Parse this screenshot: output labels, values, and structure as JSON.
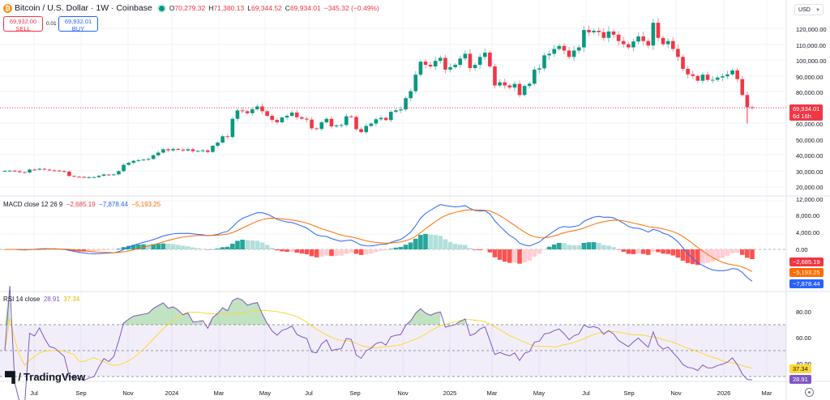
{
  "header": {
    "title": "Bitcoin / U.S. Dollar · 1W · Coinbase",
    "open_label": "O",
    "open": "70,279.32",
    "high_label": "H",
    "high": "71,380.13",
    "low_label": "L",
    "low": "69,344.52",
    "close_label": "C",
    "close": "69,934.01",
    "change": "−345.32 (−0.49%)",
    "icon": "bitcoin-icon"
  },
  "trade": {
    "sell_price": "69,932.00",
    "sell_label": "SELL",
    "spread": "0.01",
    "buy_price": "69,932.01",
    "buy_label": "BUY"
  },
  "currency": {
    "selected": "USD"
  },
  "price_axis": {
    "labels": [
      "120,000.00",
      "110,000.00",
      "100,000.00",
      "90,000.00",
      "80,000.00",
      "60,000.00",
      "50,000.00",
      "40,000.00",
      "30,000.00",
      "20,000.00"
    ],
    "current_price": "69,934.01",
    "countdown": "6d 16h"
  },
  "macd": {
    "legend_name": "MACD close 12 26 9",
    "hist": "−2,685.19",
    "macd": "−7,878.44",
    "signal": "−5,193.25",
    "axis_labels": [
      "12,000.00",
      "8,000.00",
      "4,000.00",
      "0.00"
    ]
  },
  "rsi": {
    "legend_name": "RSI 14 close",
    "rsi": "28.91",
    "ma": "37.34",
    "axis_labels": [
      "80.00",
      "60.00",
      "40.00"
    ]
  },
  "time_axis": {
    "labels": [
      "Jul",
      "Sep",
      "Nov",
      "2024",
      "Mar",
      "May",
      "Jul",
      "Sep",
      "Nov",
      "2025",
      "Mar",
      "May",
      "Jul",
      "Sep",
      "Nov",
      "2026",
      "Mar"
    ]
  },
  "branding": {
    "logo_text": "TradingView"
  },
  "colors": {
    "up": "#089981",
    "down": "#f23645",
    "macd": "#2962ff",
    "signal": "#ff6d00",
    "rsi": "#7e57c2",
    "rsi_ma": "#fdd835"
  },
  "chart_data": [
    {
      "type": "candlestick",
      "title": "Bitcoin / U.S. Dollar · 1W · Coinbase",
      "ylabel": "USD",
      "ylim": [
        15000,
        125000
      ],
      "x_tick_labels": [
        "Jul",
        "Sep",
        "Nov",
        "2024",
        "Mar",
        "May",
        "Jul",
        "Sep",
        "Nov",
        "2025",
        "Mar",
        "May",
        "Jul",
        "Sep",
        "Nov",
        "2026",
        "Mar"
      ],
      "close_approx": [
        30200,
        30300,
        30000,
        29400,
        29200,
        31000,
        30900,
        31500,
        31000,
        30500,
        30400,
        30100,
        29700,
        27000,
        26500,
        26400,
        26000,
        26200,
        26300,
        27100,
        27900,
        27500,
        28000,
        30000,
        34000,
        35300,
        36500,
        36900,
        37300,
        37700,
        40000,
        41700,
        43800,
        43100,
        44000,
        43600,
        43000,
        43800,
        42600,
        42800,
        43100,
        42100,
        46000,
        48000,
        52000,
        51500,
        63000,
        68300,
        67800,
        66500,
        69000,
        70800,
        67800,
        64900,
        62300,
        60800,
        63800,
        64900,
        66900,
        64000,
        63100,
        62500,
        57000,
        56600,
        60800,
        63000,
        58200,
        58800,
        59100,
        64600,
        64200,
        56500,
        54600,
        58500,
        60000,
        62700,
        63600,
        62200,
        67400,
        68300,
        68900,
        76000,
        80400,
        90800,
        99000,
        97000,
        96000,
        99500,
        101400,
        94000,
        95500,
        97000,
        101000,
        104000,
        95000,
        97000,
        102000,
        104700,
        96000,
        84000,
        86000,
        84000,
        82700,
        85000,
        78000,
        83700,
        85100,
        94000,
        94800,
        103000,
        104000,
        107000,
        108900,
        106000,
        102000,
        106000,
        108000,
        119000,
        117500,
        118500,
        117600,
        114000,
        118000,
        116000,
        112000,
        110000,
        108000,
        111700,
        114900,
        112000,
        109200,
        123500,
        114000,
        110000,
        112000,
        107000,
        102000,
        94500,
        91000,
        90000,
        87000,
        90800,
        87500,
        87600,
        89000,
        89800,
        91000,
        93500,
        88000,
        78000,
        70300,
        69934
      ]
    },
    {
      "type": "line+bar",
      "title": "MACD close 12 26 9",
      "series": [
        {
          "name": "Histogram",
          "last": -2685.19
        },
        {
          "name": "MACD",
          "last": -7878.44
        },
        {
          "name": "Signal",
          "last": -5193.25
        }
      ],
      "ylim": [
        -10000,
        13000
      ],
      "y_tick_labels": [
        "12,000.00",
        "8,000.00",
        "4,000.00",
        "0.00"
      ]
    },
    {
      "type": "line",
      "title": "RSI 14 close",
      "series": [
        {
          "name": "RSI",
          "last": 28.91
        },
        {
          "name": "RSI-based MA",
          "last": 37.34
        }
      ],
      "bands": [
        30,
        50,
        70
      ],
      "y_tick_labels": [
        "80.00",
        "60.00",
        "40.00"
      ]
    }
  ]
}
